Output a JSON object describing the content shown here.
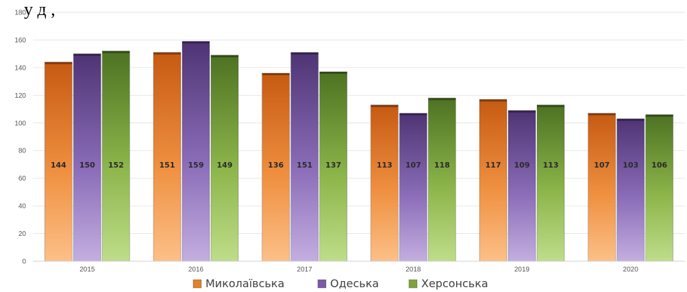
{
  "header_fragment": "у                      д      ,",
  "chart_data": {
    "type": "bar",
    "categories": [
      "2015",
      "2016",
      "2017",
      "2018",
      "2019",
      "2020"
    ],
    "series": [
      {
        "name": "Миколаївська",
        "values": [
          144,
          151,
          136,
          113,
          117,
          107
        ],
        "color": "#e0822c"
      },
      {
        "name": "Одеська",
        "values": [
          150,
          159,
          151,
          107,
          109,
          103
        ],
        "color": "#7b5aa6"
      },
      {
        "name": "Херсонська",
        "values": [
          152,
          149,
          137,
          118,
          113,
          106
        ],
        "color": "#7da43c"
      }
    ],
    "yticks": [
      "0",
      "20",
      "40",
      "60",
      "80",
      "100",
      "120",
      "140",
      "160",
      "180"
    ],
    "ylim": [
      0,
      180
    ],
    "grid": true,
    "legend_position": "bottom"
  }
}
